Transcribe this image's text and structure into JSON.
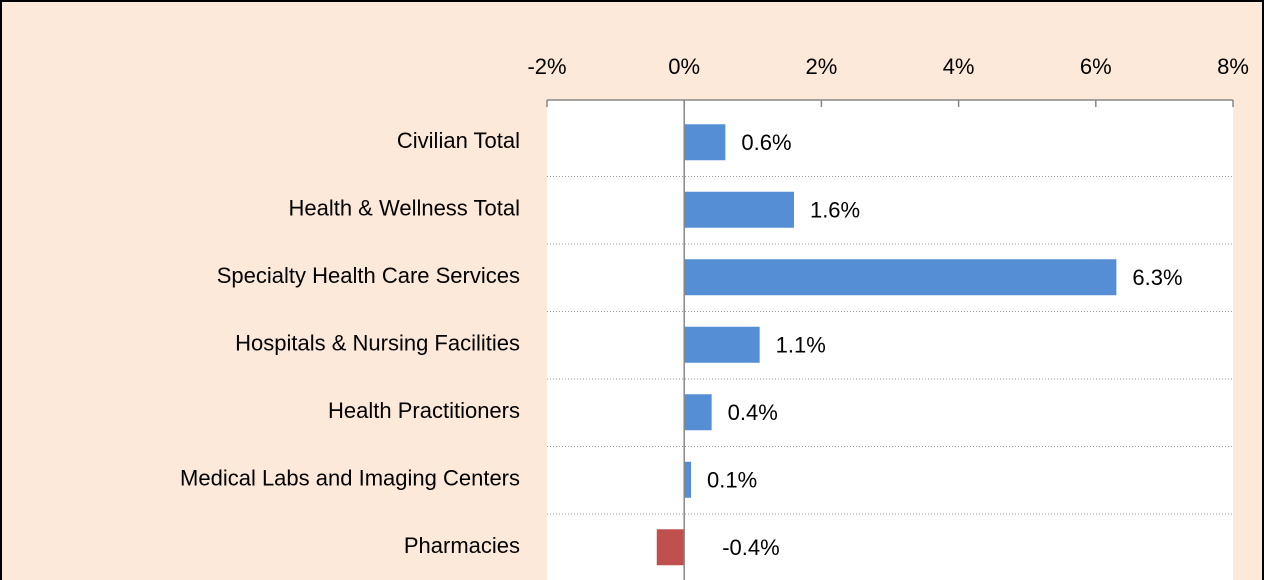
{
  "chart_data": {
    "type": "barh",
    "categories": [
      "Civilian Total",
      "Health & Wellness Total",
      "Specialty Health Care Services",
      "Hospitals & Nursing Facilities",
      "Health Practitioners",
      "Medical Labs and Imaging Centers",
      "Pharmacies"
    ],
    "values": [
      0.6,
      1.6,
      6.3,
      1.1,
      0.4,
      0.1,
      -0.4
    ],
    "value_labels": [
      "0.6%",
      "1.6%",
      "6.3%",
      "1.1%",
      "0.4%",
      "0.1%",
      "-0.4%"
    ],
    "colors": [
      "#558ed5",
      "#558ed5",
      "#558ed5",
      "#558ed5",
      "#558ed5",
      "#558ed5",
      "#c0504d"
    ],
    "xlim": [
      -2,
      8
    ],
    "xticks": [
      {
        "value": -2,
        "label": "-2%"
      },
      {
        "value": 0,
        "label": "0%"
      },
      {
        "value": 2,
        "label": "2%"
      },
      {
        "value": 4,
        "label": "4%"
      },
      {
        "value": 6,
        "label": "6%"
      },
      {
        "value": 8,
        "label": "8%"
      }
    ]
  }
}
